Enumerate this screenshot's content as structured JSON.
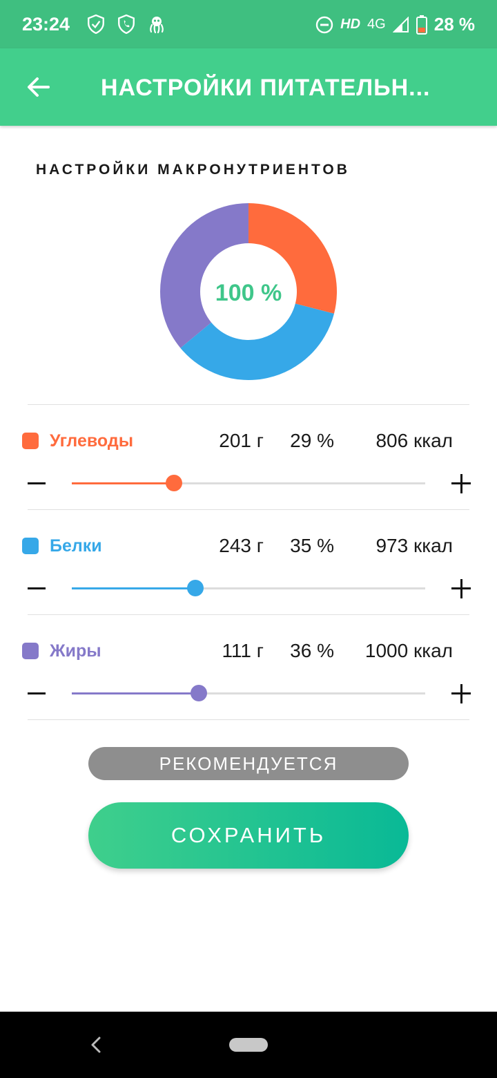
{
  "status_bar": {
    "time": "23:24",
    "hd": "HD",
    "network": "4G",
    "battery": "28 %",
    "icons": [
      "shield-check-icon",
      "shield-phone-icon",
      "octopus-icon",
      "do-not-disturb-icon",
      "signal-icon",
      "battery-icon"
    ]
  },
  "app_bar": {
    "title": "НАСТРОЙКИ ПИТАТЕЛЬН...",
    "back_icon": "arrow-left-icon"
  },
  "section_title": "НАСТРОЙКИ МАКРОНУТРИЕНТОВ",
  "chart_data": {
    "type": "pie",
    "center_label": "100 %",
    "categories": [
      "Углеводы",
      "Белки",
      "Жиры"
    ],
    "values": [
      29,
      35,
      36
    ],
    "colors": [
      "#ff6b3d",
      "#36a8e8",
      "#8579c9"
    ]
  },
  "macros": [
    {
      "name": "Углеводы",
      "grams": "201 г",
      "percent": "29 %",
      "kcal": "806 ккал",
      "color": "#ff6b3d",
      "slider_value": 0.29
    },
    {
      "name": "Белки",
      "grams": "243 г",
      "percent": "35 %",
      "kcal": "973 ккал",
      "color": "#36a8e8",
      "slider_value": 0.35
    },
    {
      "name": "Жиры",
      "grams": "111 г",
      "percent": "36 %",
      "kcal": "1000 ккал",
      "color": "#8579c9",
      "slider_value": 0.36
    }
  ],
  "buttons": {
    "recommended": "РЕКОМЕНДУЕТСЯ",
    "save": "СОХРАНИТЬ"
  },
  "colors": {
    "status_bar": "#3fbf80",
    "app_bar": "#42cf8c",
    "accent": "#3fc68a"
  }
}
